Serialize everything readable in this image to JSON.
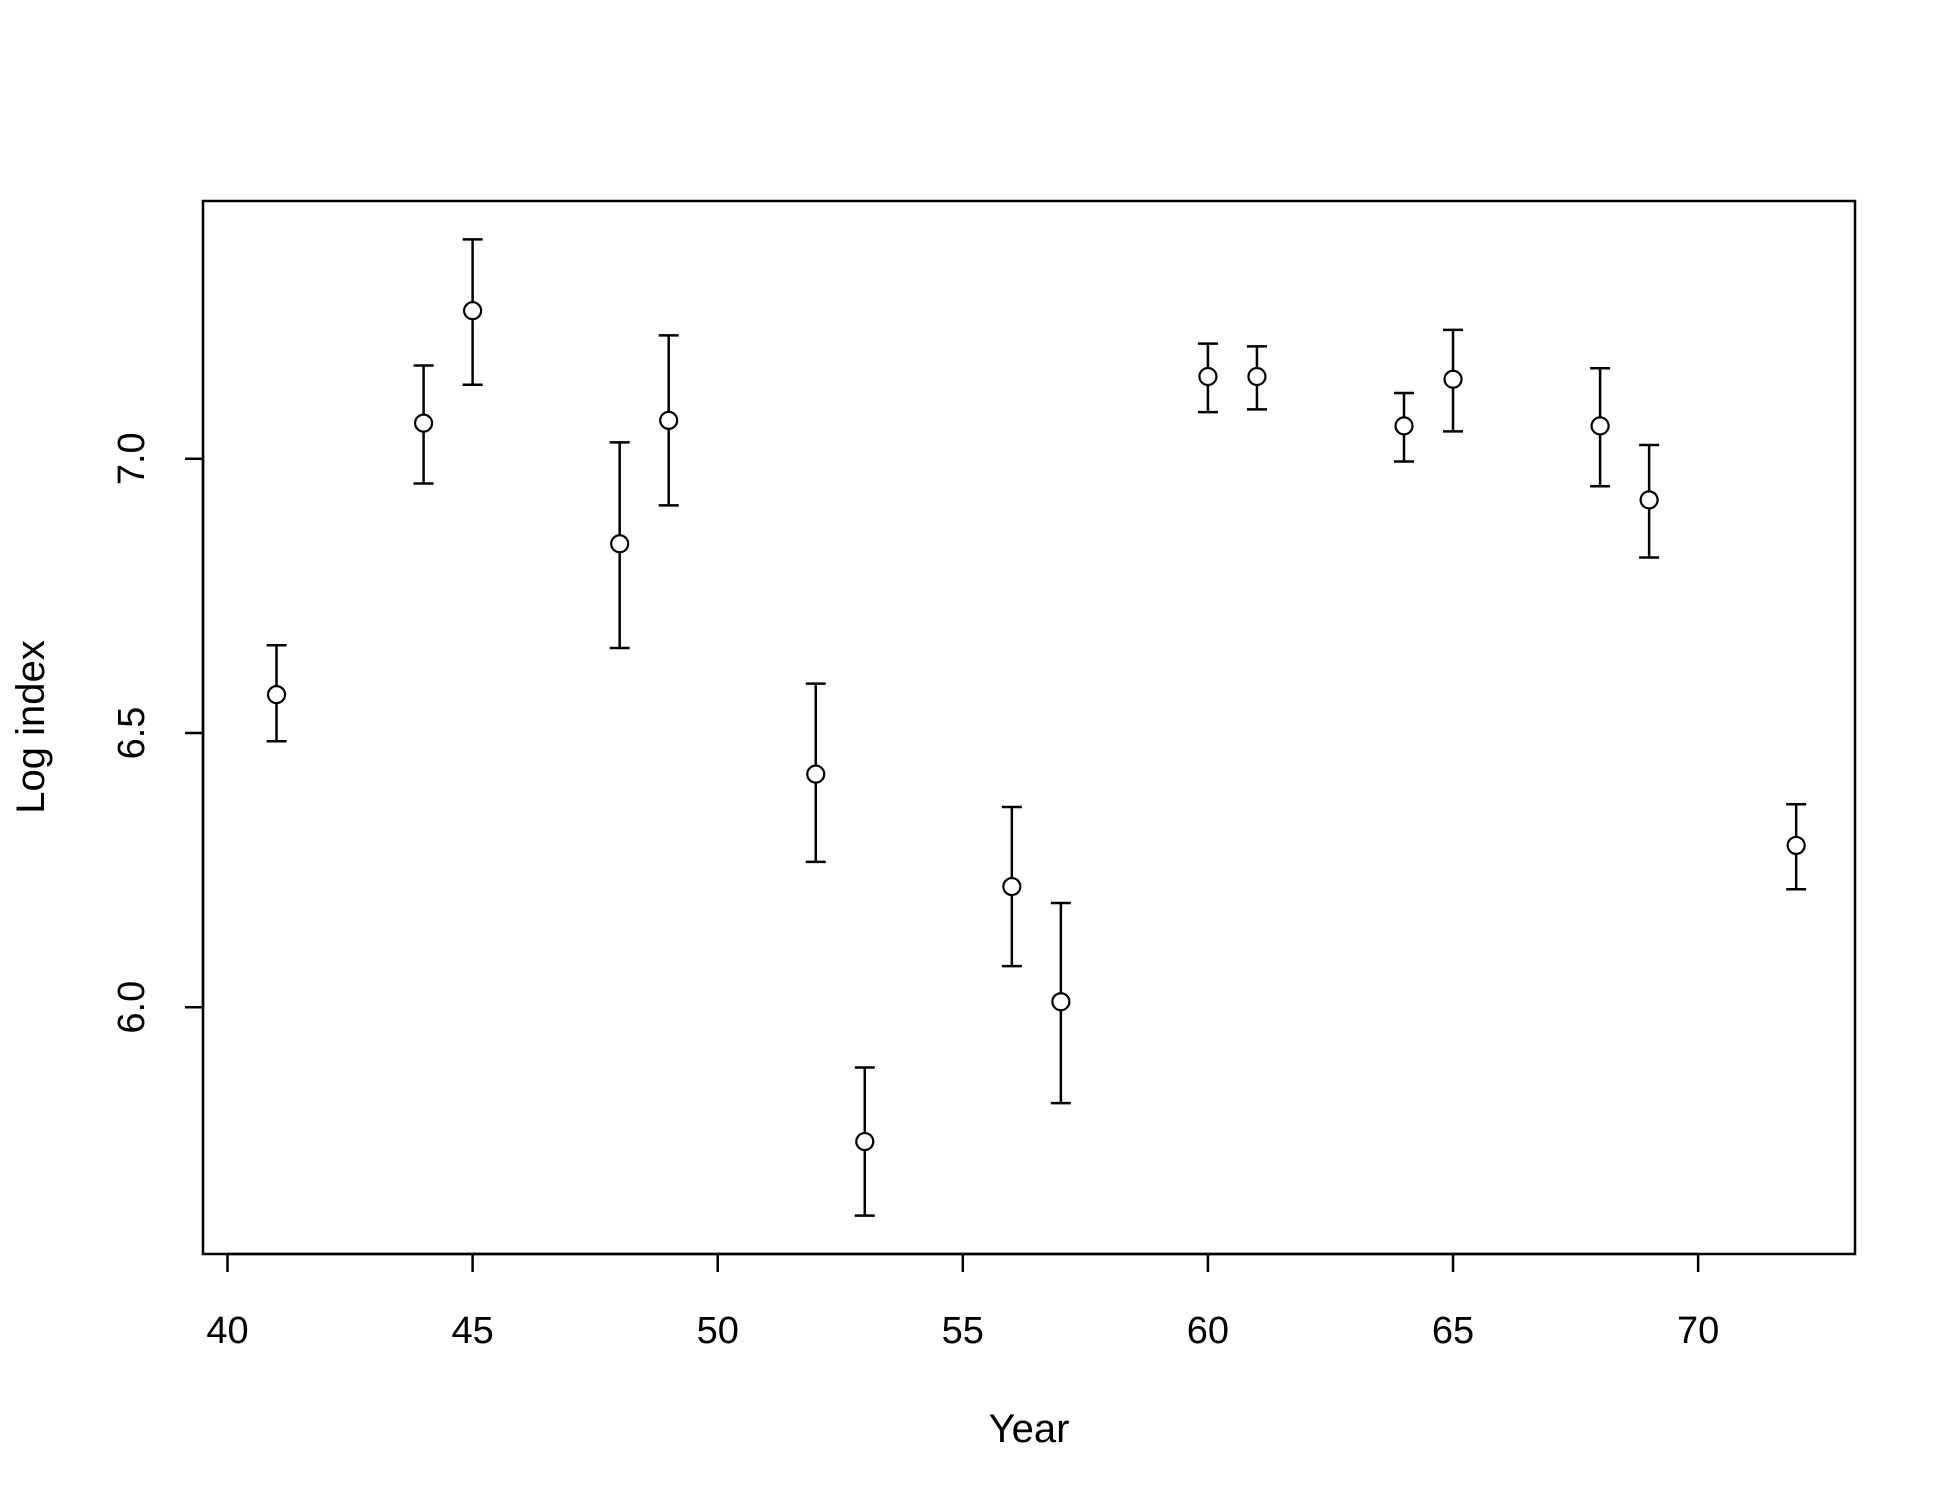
{
  "chart_data": {
    "type": "scatter",
    "xlabel": "Year",
    "ylabel": "Log index",
    "xlim": [
      39.5,
      73.2
    ],
    "ylim": [
      5.55,
      7.47
    ],
    "xticks": [
      "40",
      "45",
      "50",
      "55",
      "60",
      "65",
      "70"
    ],
    "yticks": [
      "6.0",
      "6.5",
      "7.0"
    ],
    "grid": false,
    "series": [
      {
        "points": [
          {
            "x": 41,
            "y": 6.57,
            "lo": 6.485,
            "hi": 6.66
          },
          {
            "x": 44,
            "y": 7.065,
            "lo": 6.955,
            "hi": 7.17
          },
          {
            "x": 45,
            "y": 7.27,
            "lo": 7.135,
            "hi": 7.4
          },
          {
            "x": 48,
            "y": 6.845,
            "lo": 6.655,
            "hi": 7.03
          },
          {
            "x": 49,
            "y": 7.07,
            "lo": 6.915,
            "hi": 7.225
          },
          {
            "x": 52,
            "y": 6.425,
            "lo": 6.265,
            "hi": 6.59
          },
          {
            "x": 53,
            "y": 5.755,
            "lo": 5.62,
            "hi": 5.89
          },
          {
            "x": 56,
            "y": 6.22,
            "lo": 6.075,
            "hi": 6.365
          },
          {
            "x": 57,
            "y": 6.01,
            "lo": 5.825,
            "hi": 6.19
          },
          {
            "x": 60,
            "y": 7.15,
            "lo": 7.085,
            "hi": 7.21
          },
          {
            "x": 61,
            "y": 7.15,
            "lo": 7.09,
            "hi": 7.205
          },
          {
            "x": 64,
            "y": 7.06,
            "lo": 6.995,
            "hi": 7.12
          },
          {
            "x": 65,
            "y": 7.145,
            "lo": 7.05,
            "hi": 7.235
          },
          {
            "x": 68,
            "y": 7.06,
            "lo": 6.95,
            "hi": 7.165
          },
          {
            "x": 69,
            "y": 6.925,
            "lo": 6.82,
            "hi": 7.025
          },
          {
            "x": 72,
            "y": 6.295,
            "lo": 6.215,
            "hi": 6.37
          }
        ]
      }
    ]
  }
}
